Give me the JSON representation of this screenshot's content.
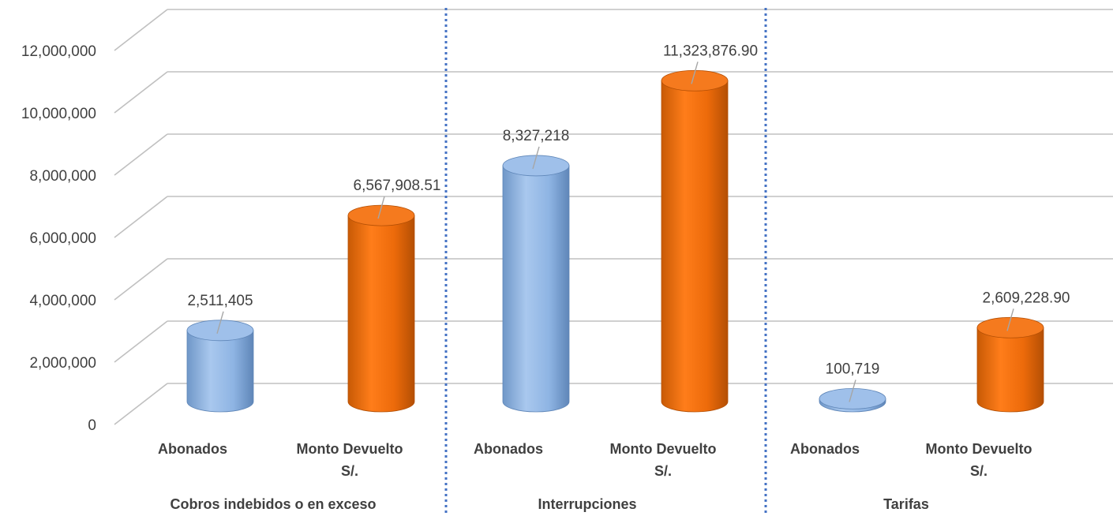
{
  "chart_data": {
    "type": "bar",
    "style": "3d-cylinder",
    "groups": [
      {
        "name": "Cobros indebidos o en exceso",
        "bars": [
          {
            "category": "Abonados",
            "value": 2511405,
            "label": "2,511,405",
            "color": "#8DB3E2"
          },
          {
            "category": "Monto Devuelto S/.",
            "value": 6567908.51,
            "label": "6,567,908.51",
            "color": "#E36C09"
          }
        ]
      },
      {
        "name": "Interrupciones",
        "bars": [
          {
            "category": "Abonados",
            "value": 8327218,
            "label": "8,327,218",
            "color": "#8DB3E2"
          },
          {
            "category": "Monto Devuelto S/.",
            "value": 11323876.9,
            "label": "11,323,876.90",
            "color": "#E36C09"
          }
        ]
      },
      {
        "name": "Tarifas",
        "bars": [
          {
            "category": "Abonados",
            "value": 100719,
            "label": "100,719",
            "color": "#8DB3E2"
          },
          {
            "category": "Monto Devuelto S/.",
            "value": 2609228.9,
            "label": "2,609,228.90",
            "color": "#E36C09"
          }
        ]
      }
    ],
    "category_labels": [
      [
        "Abonados"
      ],
      [
        "Monto Devuelto",
        "S/."
      ]
    ],
    "y_ticks": [
      "0",
      "2,000,000",
      "4,000,000",
      "6,000,000",
      "8,000,000",
      "10,000,000",
      "12,000,000"
    ],
    "ylim": [
      0,
      12000000
    ],
    "grid": true,
    "group_separator": "dotted",
    "colors": {
      "abonados": "#8DB3E2",
      "monto": "#E36C09",
      "grid": "#c0c0c0",
      "separator": "#4472C4",
      "text": "#404040"
    }
  }
}
